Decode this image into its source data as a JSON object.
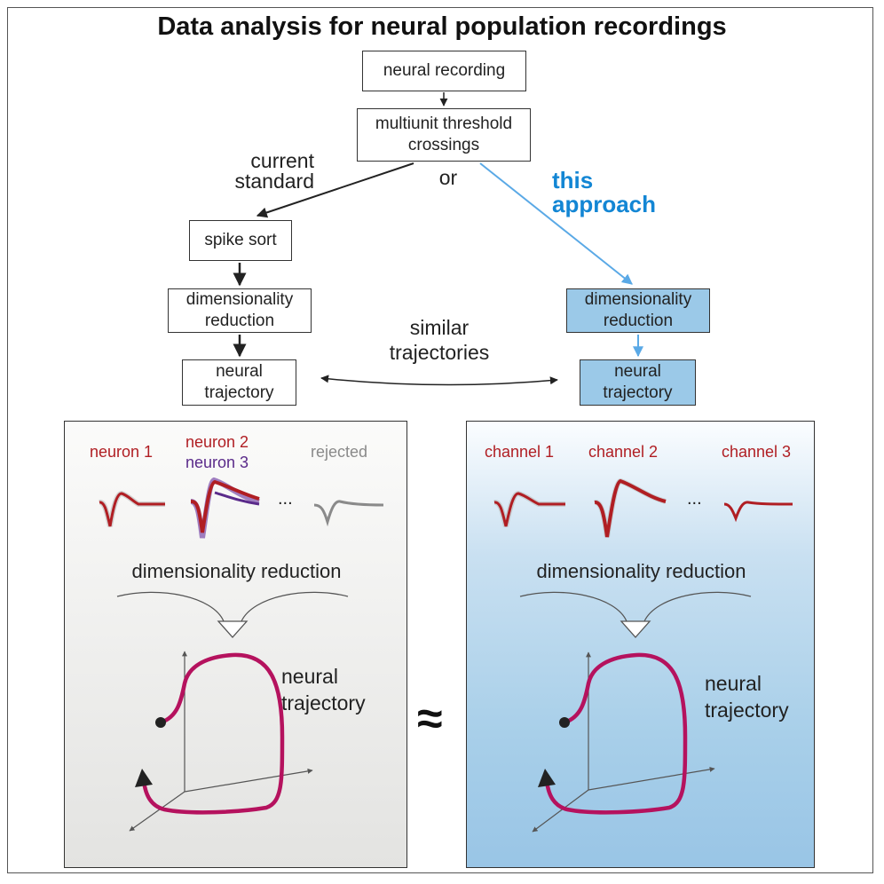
{
  "title": "Data analysis for neural population recordings",
  "flow": {
    "neural_recording": "neural recording",
    "threshold_crossings": "multiunit threshold crossings",
    "or": "or",
    "current_standard": "current standard",
    "this_approach": "this approach",
    "spike_sort": "spike sort",
    "dim_reduction_left": "dimensionality reduction",
    "dim_reduction_right": "dimensionality reduction",
    "trajectory_left": "neural trajectory",
    "trajectory_right": "neural trajectory",
    "similar_trajectories": "similar trajectories"
  },
  "left_panel": {
    "unit_labels": [
      "neuron 1",
      "neuron 2",
      "neuron 3",
      "rejected"
    ],
    "ellipsis": "...",
    "dim_reduction": "dimensionality reduction",
    "trajectory_label": "neural trajectory"
  },
  "right_panel": {
    "unit_labels": [
      "channel 1",
      "channel 2",
      "channel 3"
    ],
    "ellipsis": "...",
    "dim_reduction": "dimensionality reduction",
    "trajectory_label": "neural trajectory"
  },
  "approx_symbol": "≈",
  "colors": {
    "accent_blue": "#1386d4",
    "blue_box": "#9bc9e8",
    "neuron_red": "#b01e23",
    "neuron_purple": "#5a2a8a",
    "trajectory": "#b5125e",
    "waveform_gray": "#8a8a8a"
  }
}
